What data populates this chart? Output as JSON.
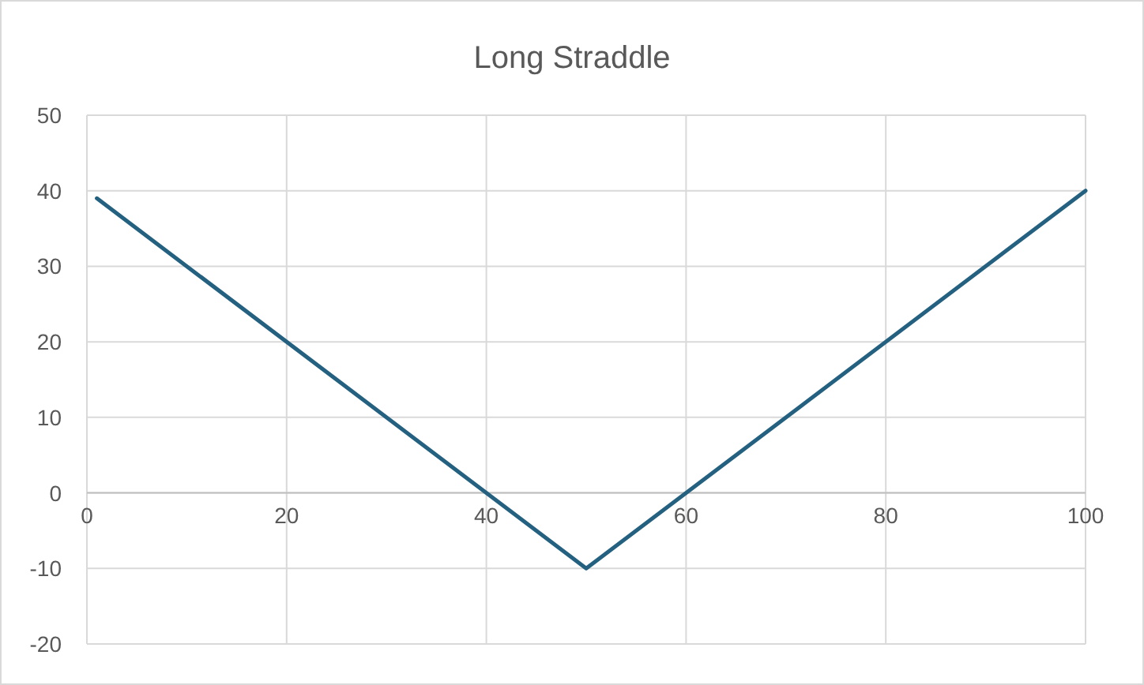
{
  "chart_data": {
    "type": "line",
    "title": "Long Straddle",
    "series": [
      {
        "color": "#24607f",
        "x": [
          1,
          50,
          100
        ],
        "values": [
          39,
          -10,
          40
        ]
      }
    ],
    "xlim": [
      0,
      100
    ],
    "xticks": [
      0,
      20,
      40,
      60,
      80,
      100
    ],
    "ylim": [
      -20,
      50
    ],
    "yticks": [
      -20,
      -10,
      0,
      10,
      20,
      30,
      40,
      50
    ],
    "grid": true,
    "marker": "none",
    "line_style": "solid"
  }
}
